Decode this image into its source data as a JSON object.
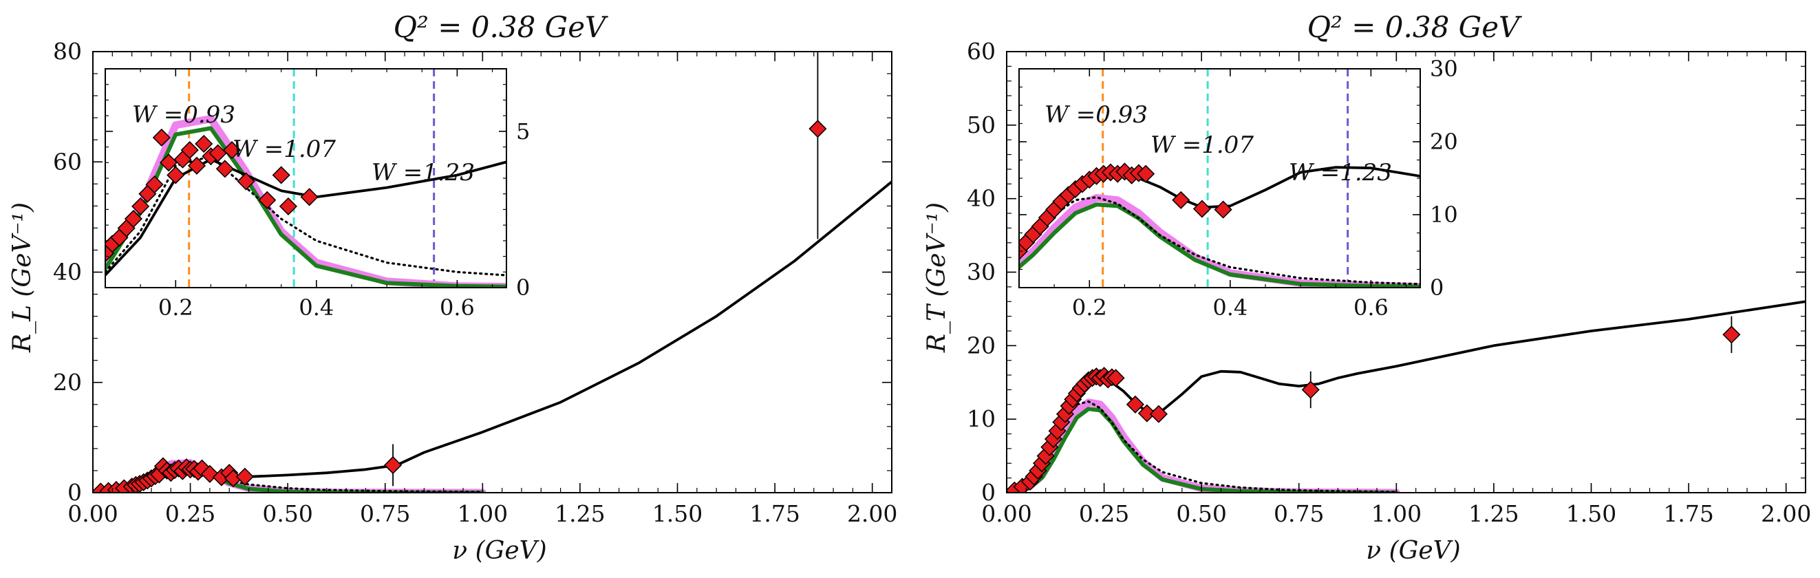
{
  "colors": {
    "data_marker": "#e41a1c",
    "full_model": "#000000",
    "dotted_model": "#000000",
    "green_band": "#1b7f1b",
    "violet_band": "#ee82ee",
    "w_093": "#ff8c1a",
    "w_107": "#40e0d0",
    "w_123": "#6a5acd"
  },
  "chart_data": [
    {
      "type": "line",
      "title": "Q² = 0.38 GeV",
      "xlabel": "ν (GeV)",
      "ylabel": "R_L (GeV⁻¹)",
      "xlim": [
        0,
        2.05
      ],
      "ylim": [
        0,
        80
      ],
      "x_ticks": [
        "0.00",
        "0.25",
        "0.50",
        "0.75",
        "1.00",
        "1.25",
        "1.50",
        "1.75",
        "2.00"
      ],
      "y_ticks": [
        "0",
        "20",
        "40",
        "60",
        "80"
      ],
      "grid": false,
      "series": [
        {
          "style": "solid-black",
          "x": [
            0.1,
            0.15,
            0.2,
            0.25,
            0.3,
            0.35,
            0.4,
            0.5,
            0.6,
            0.7,
            0.78,
            0.85,
            1.0,
            1.2,
            1.4,
            1.6,
            1.8,
            2.05
          ],
          "y": [
            0.4,
            1.6,
            3.5,
            4.1,
            3.6,
            3.1,
            2.9,
            3.2,
            3.6,
            4.2,
            5.0,
            7.3,
            11.0,
            16.4,
            23.5,
            32.0,
            42.0,
            56.4
          ]
        },
        {
          "style": "dotted-black",
          "x": [
            0.1,
            0.15,
            0.2,
            0.25,
            0.3,
            0.35,
            0.4,
            0.5,
            0.6,
            0.7,
            0.8,
            1.0
          ],
          "y": [
            0.5,
            1.8,
            3.9,
            4.2,
            3.2,
            2.2,
            1.5,
            0.8,
            0.5,
            0.35,
            0.25,
            0.15
          ]
        },
        {
          "style": "green-band",
          "x": [
            0.1,
            0.15,
            0.2,
            0.25,
            0.3,
            0.35,
            0.4,
            0.5,
            0.6,
            0.7,
            0.8,
            1.0
          ],
          "y": [
            0.6,
            2.4,
            4.9,
            5.1,
            3.5,
            1.7,
            0.7,
            0.15,
            0.05,
            0.02,
            0.01,
            0.0
          ]
        },
        {
          "style": "violet-band",
          "x": [
            0.1,
            0.15,
            0.2,
            0.25,
            0.3,
            0.35,
            0.4,
            0.5,
            0.6,
            0.7,
            0.8,
            1.0
          ],
          "y": [
            0.7,
            2.6,
            5.2,
            5.4,
            3.7,
            1.8,
            0.8,
            0.2,
            0.05,
            0.02,
            0.01,
            0.0
          ]
        },
        {
          "style": "data",
          "points": [
            [
              0.02,
              0.2,
              0
            ],
            [
              0.04,
              0.3,
              0
            ],
            [
              0.06,
              0.5,
              0
            ],
            [
              0.08,
              0.8,
              0
            ],
            [
              0.1,
              1.1,
              0
            ],
            [
              0.11,
              1.4,
              0
            ],
            [
              0.12,
              1.6,
              0
            ],
            [
              0.13,
              1.9,
              0
            ],
            [
              0.14,
              2.2,
              0
            ],
            [
              0.15,
              2.6,
              0
            ],
            [
              0.16,
              3.0,
              0
            ],
            [
              0.17,
              3.3,
              0
            ],
            [
              0.18,
              4.8,
              0
            ],
            [
              0.19,
              4.0,
              0
            ],
            [
              0.2,
              3.6,
              0
            ],
            [
              0.21,
              4.1,
              0
            ],
            [
              0.22,
              4.4,
              0
            ],
            [
              0.23,
              3.9,
              0
            ],
            [
              0.24,
              4.6,
              0
            ],
            [
              0.25,
              4.2,
              0
            ],
            [
              0.26,
              4.3,
              0
            ],
            [
              0.27,
              3.8,
              0
            ],
            [
              0.28,
              4.4,
              0
            ],
            [
              0.3,
              3.4,
              0
            ],
            [
              0.33,
              2.8,
              0
            ],
            [
              0.35,
              3.6,
              0
            ],
            [
              0.36,
              2.6,
              0
            ],
            [
              0.39,
              2.9,
              0
            ],
            [
              0.77,
              5.0,
              3.8
            ],
            [
              1.86,
              66.0,
              20.0
            ]
          ]
        }
      ],
      "inset": {
        "xlim": [
          0.1,
          0.67
        ],
        "ylim": [
          0,
          7
        ],
        "x_ticks": [
          "0.2",
          "0.4",
          "0.6"
        ],
        "y_ticks": [
          "0",
          "5"
        ],
        "vlines": [
          {
            "x": 0.219,
            "label": "W =0.93",
            "color": "#ff8c1a"
          },
          {
            "x": 0.368,
            "label": "W =1.07",
            "color": "#40e0d0"
          },
          {
            "x": 0.567,
            "label": "W =1.23",
            "color": "#6a5acd"
          }
        ]
      }
    },
    {
      "type": "line",
      "title": "Q² = 0.38 GeV",
      "xlabel": "ν (GeV)",
      "ylabel": "R_T (GeV⁻¹)",
      "xlim": [
        0,
        2.05
      ],
      "ylim": [
        0,
        60
      ],
      "x_ticks": [
        "0.00",
        "0.25",
        "0.50",
        "0.75",
        "1.00",
        "1.25",
        "1.50",
        "1.75",
        "2.00"
      ],
      "y_ticks": [
        "0",
        "10",
        "20",
        "30",
        "40",
        "50",
        "60"
      ],
      "grid": false,
      "series": [
        {
          "style": "solid-black",
          "x": [
            0.03,
            0.06,
            0.09,
            0.12,
            0.15,
            0.18,
            0.21,
            0.24,
            0.27,
            0.3,
            0.33,
            0.36,
            0.4,
            0.45,
            0.5,
            0.55,
            0.6,
            0.65,
            0.7,
            0.75,
            0.8,
            0.85,
            0.9,
            1.0,
            1.25,
            1.5,
            1.75,
            2.05
          ],
          "y": [
            0.5,
            1.8,
            4.0,
            7.0,
            10.5,
            13.0,
            14.8,
            15.4,
            15.0,
            13.8,
            12.2,
            11.0,
            11.2,
            13.4,
            15.8,
            16.5,
            16.4,
            15.6,
            14.8,
            14.5,
            14.8,
            15.6,
            16.2,
            17.2,
            20.0,
            22.0,
            23.6,
            26.0
          ]
        },
        {
          "style": "dotted-black",
          "x": [
            0.03,
            0.06,
            0.09,
            0.12,
            0.15,
            0.18,
            0.21,
            0.24,
            0.27,
            0.3,
            0.35,
            0.4,
            0.5,
            0.6,
            0.7,
            0.8,
            1.0
          ],
          "y": [
            0.5,
            1.8,
            4.0,
            7.0,
            10.0,
            12.0,
            12.4,
            11.5,
            9.5,
            7.2,
            4.5,
            2.8,
            1.3,
            0.7,
            0.4,
            0.25,
            0.1
          ]
        },
        {
          "style": "green-band",
          "x": [
            0.03,
            0.06,
            0.09,
            0.12,
            0.15,
            0.18,
            0.21,
            0.24,
            0.27,
            0.3,
            0.35,
            0.4,
            0.5,
            0.6,
            0.7,
            0.8,
            1.0
          ],
          "y": [
            0.2,
            0.7,
            2.0,
            4.5,
            7.5,
            10.2,
            11.4,
            11.2,
            9.5,
            7.0,
            3.8,
            1.8,
            0.5,
            0.2,
            0.1,
            0.05,
            0.0
          ]
        },
        {
          "style": "violet-band",
          "x": [
            0.03,
            0.06,
            0.09,
            0.12,
            0.15,
            0.18,
            0.21,
            0.24,
            0.27,
            0.3,
            0.35,
            0.4,
            0.5,
            0.6,
            0.7,
            0.8,
            1.0
          ],
          "y": [
            0.3,
            0.9,
            2.3,
            5.0,
            8.2,
            11.0,
            12.3,
            12.0,
            10.2,
            7.6,
            4.2,
            2.0,
            0.6,
            0.25,
            0.1,
            0.05,
            0.0
          ]
        },
        {
          "style": "data",
          "points": [
            [
              0.02,
              0.3,
              0
            ],
            [
              0.04,
              0.8,
              0
            ],
            [
              0.06,
              1.5,
              0
            ],
            [
              0.07,
              2.2,
              0
            ],
            [
              0.08,
              3.0,
              0
            ],
            [
              0.09,
              4.0,
              0
            ],
            [
              0.1,
              5.0,
              0
            ],
            [
              0.11,
              6.2,
              0
            ],
            [
              0.12,
              7.3,
              0
            ],
            [
              0.13,
              8.4,
              0
            ],
            [
              0.14,
              9.6,
              0
            ],
            [
              0.15,
              10.7,
              0
            ],
            [
              0.16,
              11.8,
              0
            ],
            [
              0.17,
              12.7,
              0
            ],
            [
              0.18,
              13.5,
              0
            ],
            [
              0.19,
              14.2,
              0
            ],
            [
              0.2,
              14.8,
              0
            ],
            [
              0.21,
              15.3,
              0
            ],
            [
              0.22,
              15.6,
              0
            ],
            [
              0.23,
              15.8,
              0
            ],
            [
              0.24,
              15.6,
              0
            ],
            [
              0.25,
              15.9,
              0
            ],
            [
              0.26,
              15.4,
              0
            ],
            [
              0.27,
              15.7,
              0
            ],
            [
              0.28,
              15.6,
              0
            ],
            [
              0.33,
              12.0,
              0
            ],
            [
              0.36,
              10.8,
              0
            ],
            [
              0.39,
              10.7,
              0
            ],
            [
              0.78,
              14.0,
              2.5
            ],
            [
              1.86,
              21.5,
              2.5
            ]
          ]
        }
      ],
      "inset": {
        "xlim": [
          0.1,
          0.67
        ],
        "ylim": [
          0,
          30
        ],
        "x_ticks": [
          "0.2",
          "0.4",
          "0.6"
        ],
        "y_ticks": [
          "0",
          "10",
          "20",
          "30"
        ],
        "vlines": [
          {
            "x": 0.219,
            "label": "W =0.93",
            "color": "#ff8c1a"
          },
          {
            "x": 0.368,
            "label": "W =1.07",
            "color": "#40e0d0"
          },
          {
            "x": 0.567,
            "label": "W =1.23",
            "color": "#6a5acd"
          }
        ]
      }
    }
  ]
}
